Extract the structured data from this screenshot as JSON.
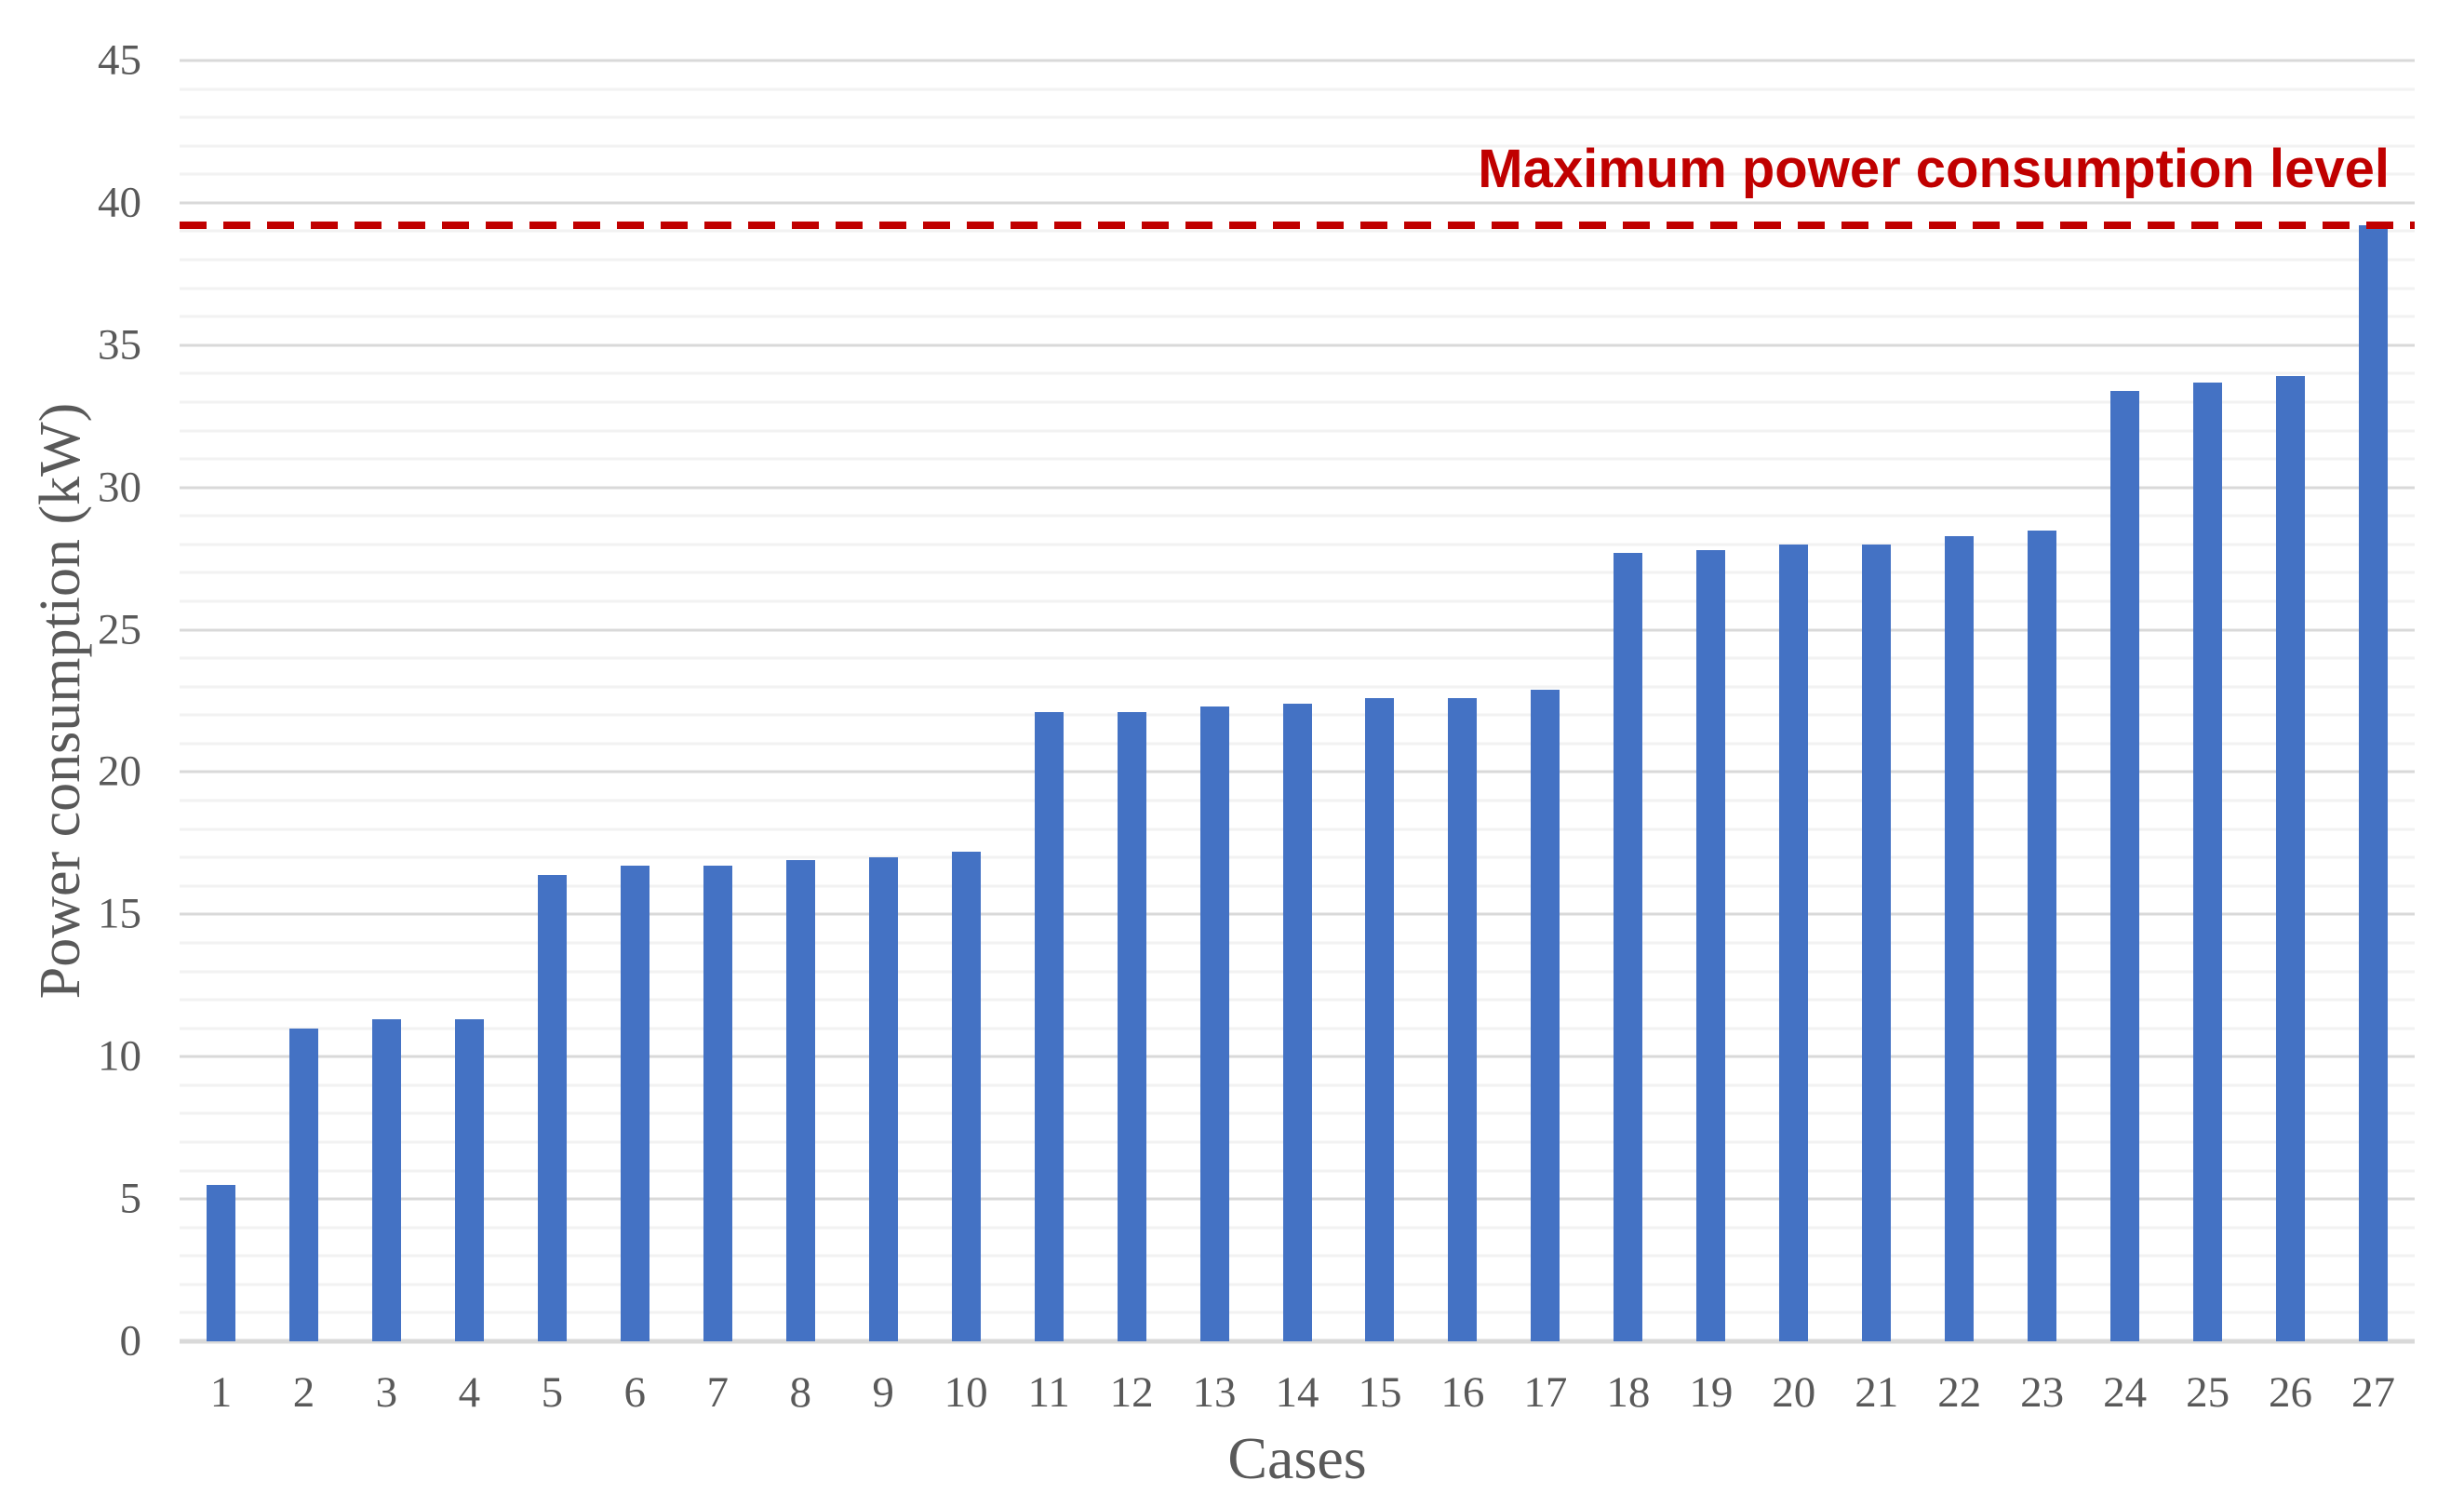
{
  "chart_data": {
    "type": "bar",
    "title": "",
    "xlabel": "Cases",
    "ylabel": "Power consumption (kW)",
    "categories": [
      "1",
      "2",
      "3",
      "4",
      "5",
      "6",
      "7",
      "8",
      "9",
      "10",
      "11",
      "12",
      "13",
      "14",
      "15",
      "16",
      "17",
      "18",
      "19",
      "20",
      "21",
      "22",
      "23",
      "24",
      "25",
      "26",
      "27"
    ],
    "values": [
      5.5,
      11.0,
      11.3,
      11.3,
      16.4,
      16.7,
      16.7,
      16.9,
      17.0,
      17.2,
      22.1,
      22.1,
      22.3,
      22.4,
      22.6,
      22.6,
      22.9,
      27.7,
      27.8,
      28.0,
      28.0,
      28.3,
      28.5,
      33.4,
      33.7,
      33.9,
      39.2
    ],
    "ylim": [
      0,
      45
    ],
    "y_major_tick_step": 5,
    "y_minor_tick_step": 1,
    "y_tick_labels": [
      "0",
      "5",
      "10",
      "15",
      "20",
      "25",
      "30",
      "35",
      "40",
      "45"
    ],
    "grid": true,
    "legend": "none",
    "annotation": {
      "text": "Maximum power consumption level",
      "value": 39.2,
      "line_style": "dashed"
    },
    "colors": {
      "bar": "#4472C4",
      "annotation_red": "#C00000",
      "axis_text": "#595959",
      "major_gridline": "#D9D9D9",
      "minor_gridline": "#F2F2F2",
      "background": "#FFFFFF"
    }
  }
}
